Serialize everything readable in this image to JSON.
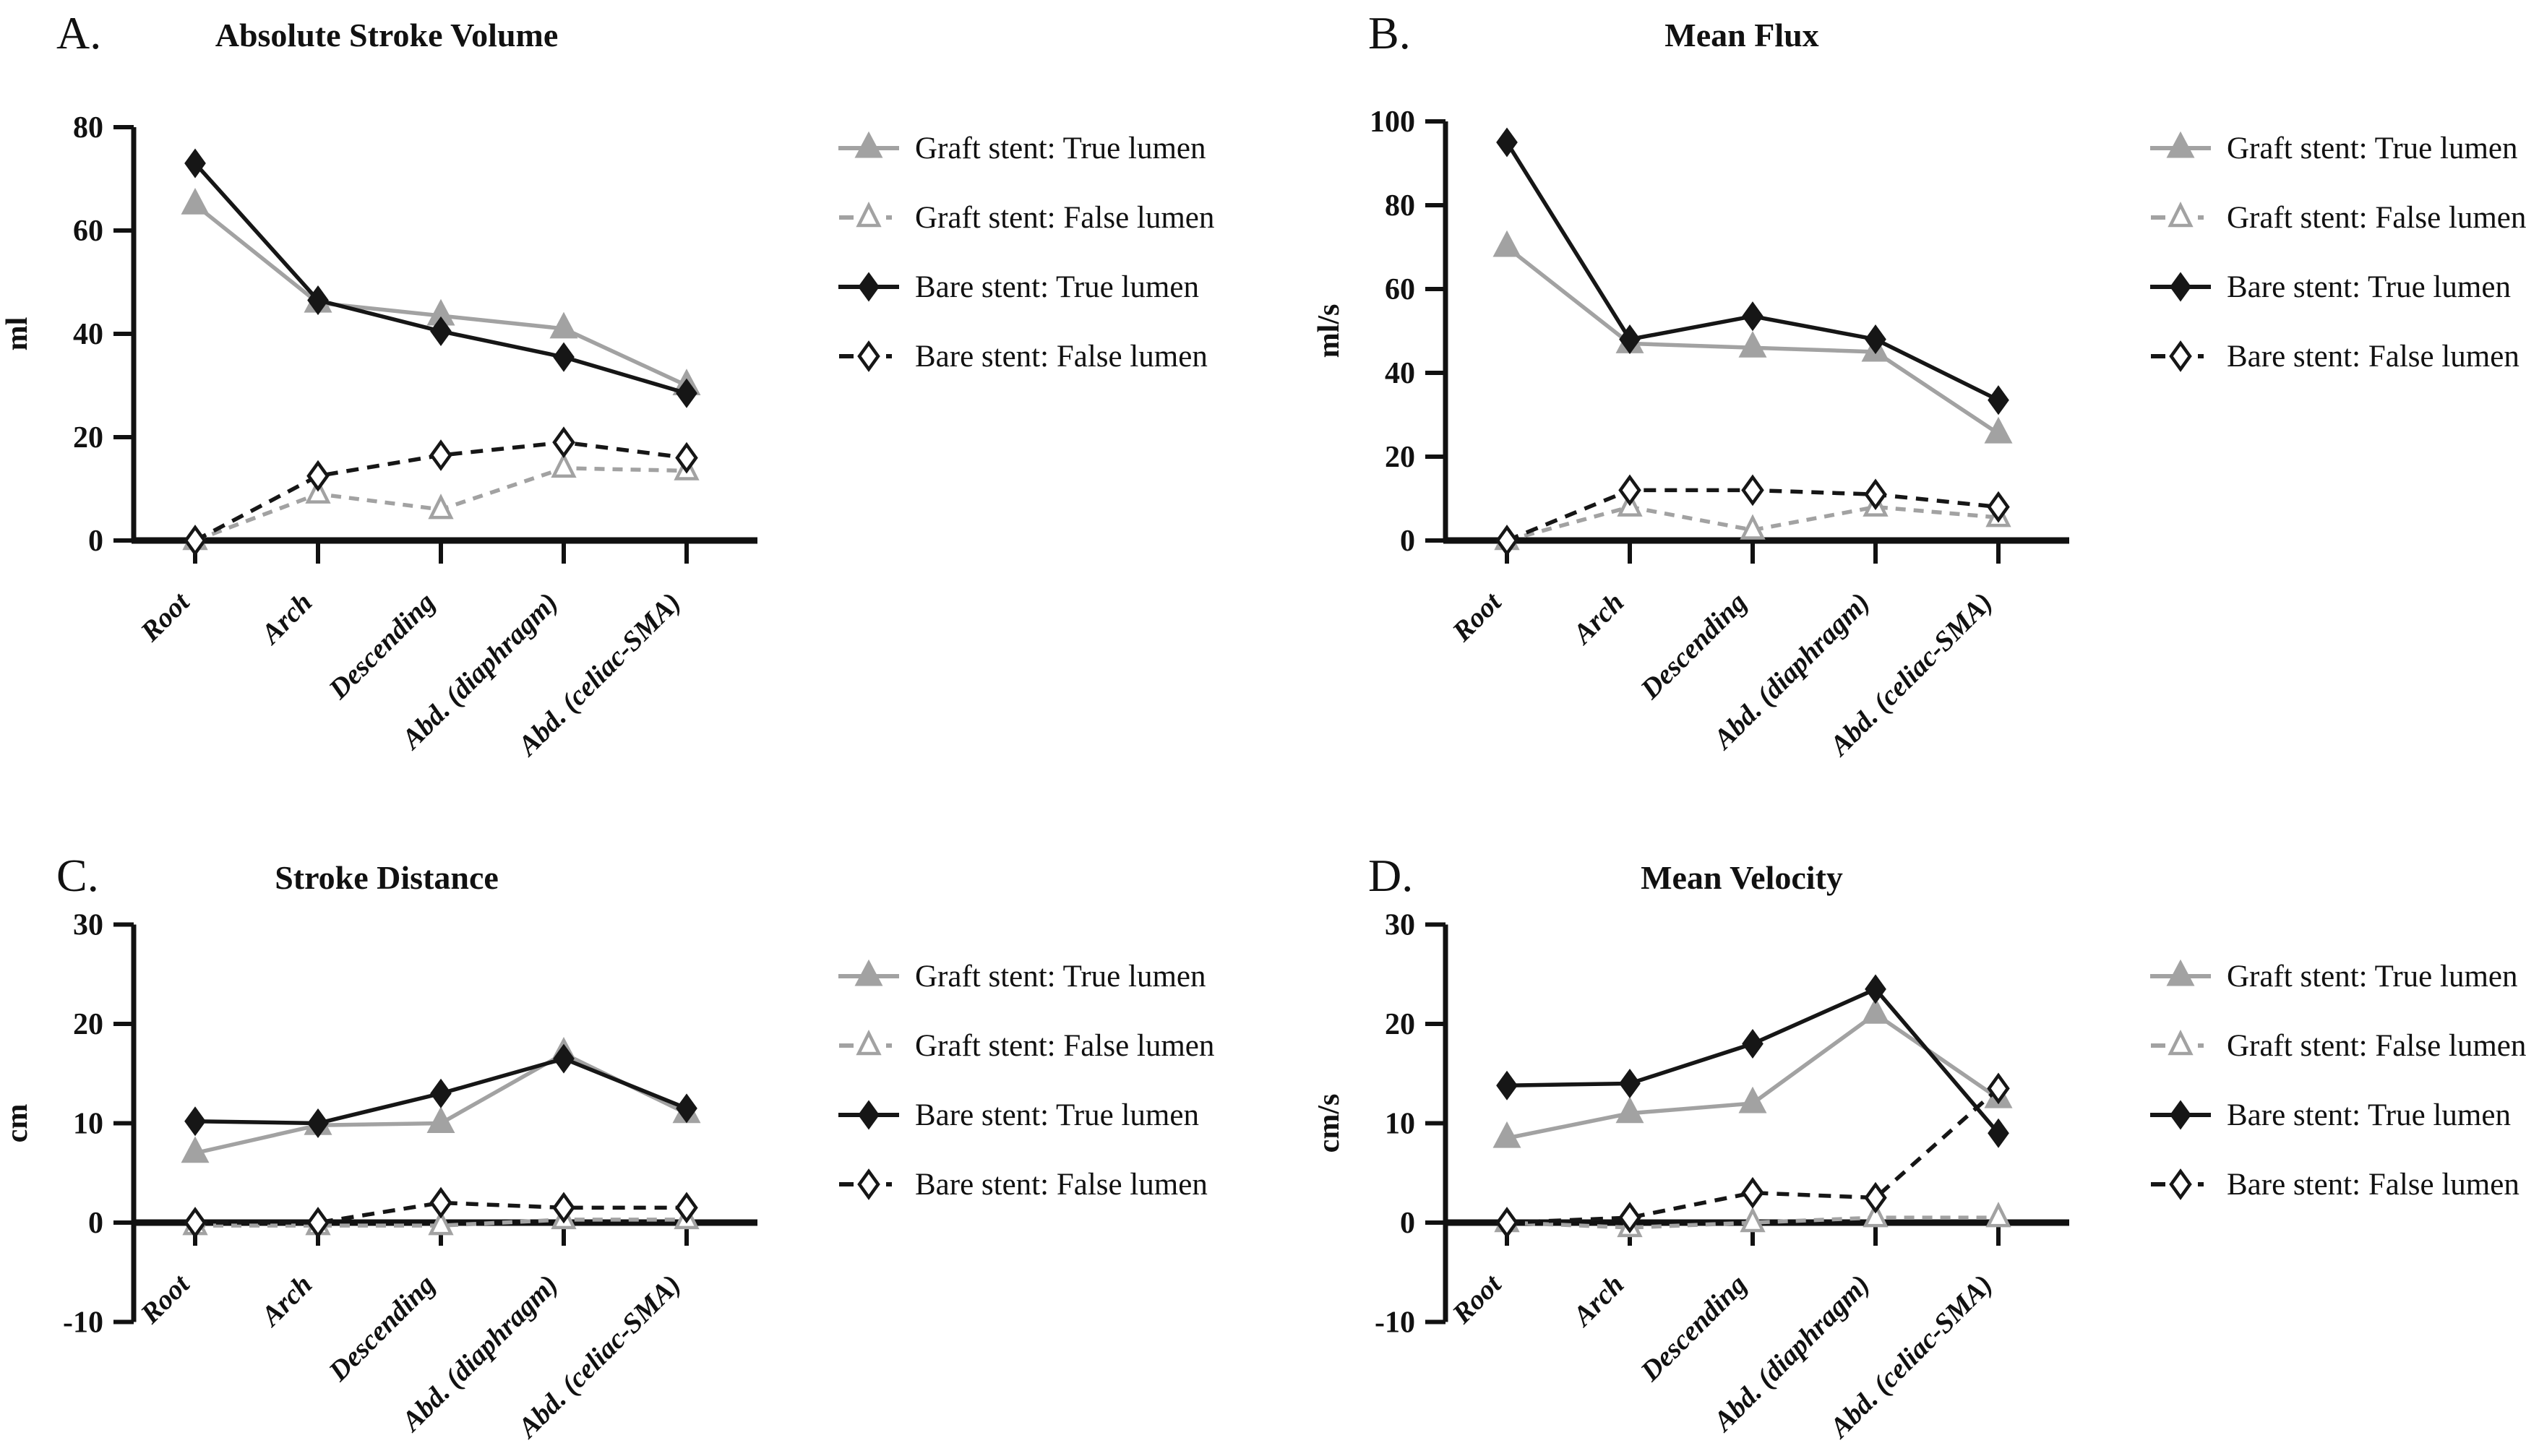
{
  "style": {
    "black": "#161616",
    "gray": "#a2a2a2",
    "background": "#ffffff"
  },
  "legend": {
    "items": [
      {
        "key": "graft_true",
        "label": "Graft stent: True lumen",
        "color": "#a2a2a2",
        "marker": "triangle-filled",
        "line": "solid"
      },
      {
        "key": "graft_false",
        "label": "Graft stent: False lumen",
        "color": "#a2a2a2",
        "marker": "triangle-open",
        "line": "dash-dot"
      },
      {
        "key": "bare_true",
        "label": "Bare stent: True lumen",
        "color": "#161616",
        "marker": "diamond-filled",
        "line": "solid"
      },
      {
        "key": "bare_false",
        "label": "Bare stent: False lumen",
        "color": "#161616",
        "marker": "diamond-open",
        "line": "dash-dot"
      }
    ]
  },
  "chart_data": [
    {
      "id": "A",
      "letter": "A.",
      "type": "line",
      "title": "Absolute Stroke Volume",
      "ylabel": "ml",
      "ylim": [
        0,
        80
      ],
      "yticks": [
        0,
        20,
        40,
        60,
        80
      ],
      "grid": false,
      "legend_position": "right",
      "categories": [
        "Root",
        "Arch",
        "Descending",
        "Abd. (diaphragm)",
        "Abd. (celiac-SMA)"
      ],
      "series": [
        {
          "key": "graft_true",
          "name": "Graft stent: True lumen",
          "values": [
            65,
            46,
            43.5,
            41,
            30
          ]
        },
        {
          "key": "graft_false",
          "name": "Graft stent: False lumen",
          "values": [
            0,
            9,
            6,
            14,
            13.5
          ]
        },
        {
          "key": "bare_true",
          "name": "Bare stent: True lumen",
          "values": [
            73,
            46.5,
            40.5,
            35.5,
            28.5
          ]
        },
        {
          "key": "bare_false",
          "name": "Bare stent: False lumen",
          "values": [
            0,
            12.5,
            16.5,
            19,
            16
          ]
        }
      ]
    },
    {
      "id": "B",
      "letter": "B.",
      "type": "line",
      "title": "Mean Flux",
      "ylabel": "ml/s",
      "ylim": [
        0,
        100
      ],
      "yticks": [
        0,
        20,
        40,
        60,
        80,
        100
      ],
      "grid": false,
      "legend_position": "right",
      "categories": [
        "Root",
        "Arch",
        "Descending",
        "Abd. (diaphragm)",
        "Abd. (celiac-SMA)"
      ],
      "series": [
        {
          "key": "graft_true",
          "name": "Graft stent: True lumen",
          "values": [
            70,
            47,
            46,
            45,
            25.5
          ]
        },
        {
          "key": "graft_false",
          "name": "Graft stent: False lumen",
          "values": [
            0,
            8,
            2.5,
            8,
            5.5
          ]
        },
        {
          "key": "bare_true",
          "name": "Bare stent: True lumen",
          "values": [
            95,
            48,
            53.5,
            48,
            33.5
          ]
        },
        {
          "key": "bare_false",
          "name": "Bare stent: False lumen",
          "values": [
            0,
            12,
            12,
            11,
            8
          ]
        }
      ]
    },
    {
      "id": "C",
      "letter": "C.",
      "type": "line",
      "title": "Stroke Distance",
      "ylabel": "cm",
      "ylim": [
        -10,
        30
      ],
      "yticks": [
        -10,
        0,
        10,
        20,
        30
      ],
      "grid": false,
      "legend_position": "right",
      "categories": [
        "Root",
        "Arch",
        "Descending",
        "Abd. (diaphragm)",
        "Abd. (celiac-SMA)"
      ],
      "series": [
        {
          "key": "graft_true",
          "name": "Graft stent: True lumen",
          "values": [
            7,
            9.8,
            10,
            17,
            11
          ]
        },
        {
          "key": "graft_false",
          "name": "Graft stent: False lumen",
          "values": [
            -0.3,
            -0.3,
            -0.3,
            0.3,
            0.3
          ]
        },
        {
          "key": "bare_true",
          "name": "Bare stent: True lumen",
          "values": [
            10.2,
            10,
            13,
            16.5,
            11.5
          ]
        },
        {
          "key": "bare_false",
          "name": "Bare stent: False lumen",
          "values": [
            0,
            0,
            2,
            1.5,
            1.5
          ]
        }
      ]
    },
    {
      "id": "D",
      "letter": "D.",
      "type": "line",
      "title": "Mean Velocity",
      "ylabel": "cm/s",
      "ylim": [
        -10,
        30
      ],
      "yticks": [
        -10,
        0,
        10,
        20,
        30
      ],
      "grid": false,
      "legend_position": "right",
      "categories": [
        "Root",
        "Arch",
        "Descending",
        "Abd. (diaphragm)",
        "Abd. (celiac-SMA)"
      ],
      "series": [
        {
          "key": "graft_true",
          "name": "Graft stent: True lumen",
          "values": [
            8.5,
            11,
            12,
            21,
            12.5
          ]
        },
        {
          "key": "graft_false",
          "name": "Graft stent: False lumen",
          "values": [
            0,
            -0.5,
            0,
            0.5,
            0.5
          ]
        },
        {
          "key": "bare_true",
          "name": "Bare stent: True lumen",
          "values": [
            13.8,
            14,
            18,
            23.5,
            9
          ]
        },
        {
          "key": "bare_false",
          "name": "Bare stent: False lumen",
          "values": [
            0,
            0.5,
            3,
            2.5,
            13.5
          ]
        }
      ]
    }
  ]
}
